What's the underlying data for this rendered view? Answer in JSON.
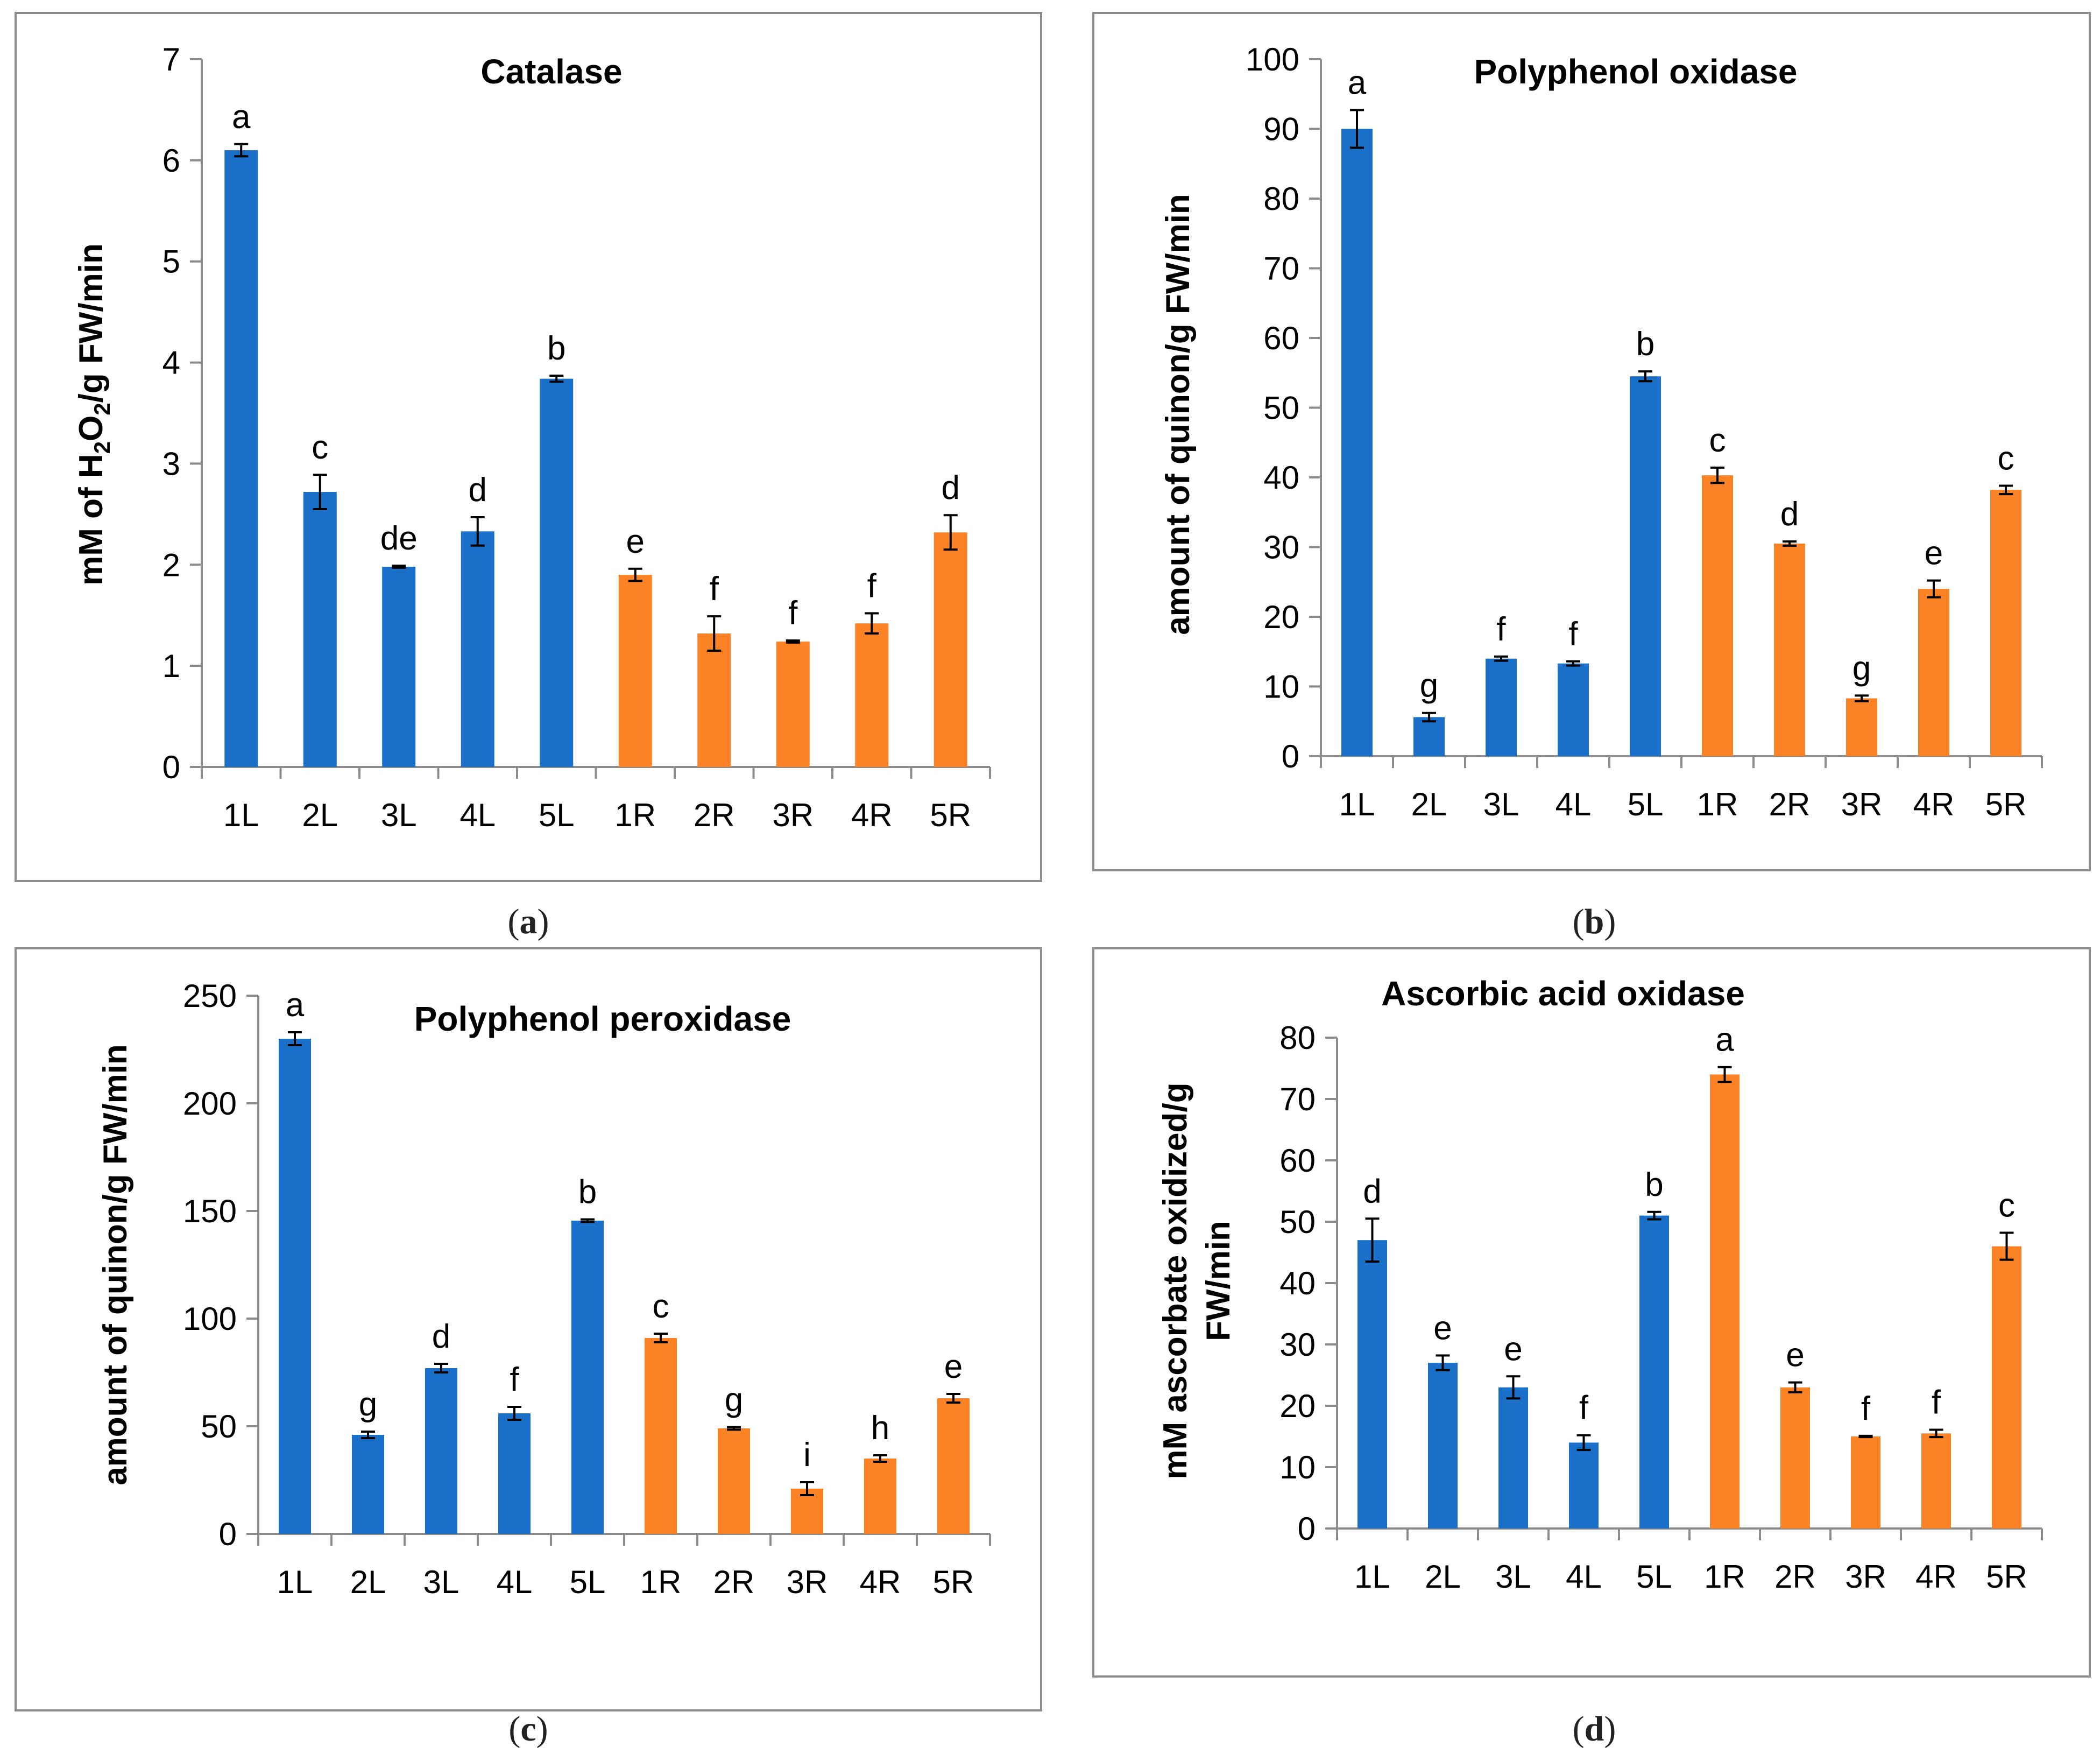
{
  "colors": {
    "left": "#1a70c8",
    "right": "#fb8225",
    "axis": "#8c8c8c",
    "text": "#000000"
  },
  "chart_data": [
    {
      "type": "bar",
      "panel_label": "a",
      "title": "Catalase",
      "ylabel_parts": [
        "mM of H",
        "2",
        "O",
        "2",
        "/g FW/min"
      ],
      "categories": [
        "1L",
        "2L",
        "3L",
        "4L",
        "5L",
        "1R",
        "2R",
        "3R",
        "4R",
        "5R"
      ],
      "values": [
        6.1,
        2.72,
        1.98,
        2.33,
        3.84,
        1.9,
        1.32,
        1.24,
        1.42,
        2.32
      ],
      "errors": [
        0.06,
        0.17,
        0.01,
        0.14,
        0.03,
        0.06,
        0.17,
        0.01,
        0.1,
        0.17
      ],
      "letters": [
        "a",
        "c",
        "de",
        "d",
        "b",
        "e",
        "f",
        "f",
        "f",
        "d"
      ],
      "group": [
        "L",
        "L",
        "L",
        "L",
        "L",
        "R",
        "R",
        "R",
        "R",
        "R"
      ],
      "ylim": [
        0,
        7
      ],
      "yticks": [
        "0",
        "1",
        "2",
        "3",
        "4",
        "5",
        "6",
        "7"
      ],
      "ytick_values": [
        0,
        1,
        2,
        3,
        4,
        5,
        6,
        7
      ]
    },
    {
      "type": "bar",
      "panel_label": "b",
      "title": "Polyphenol oxidase",
      "ylabel_parts": [
        "amount of quinon/g FW/min"
      ],
      "categories": [
        "1L",
        "2L",
        "3L",
        "4L",
        "5L",
        "1R",
        "2R",
        "3R",
        "4R",
        "5R"
      ],
      "values": [
        90,
        5.6,
        14,
        13.3,
        54.5,
        40.3,
        30.5,
        8.3,
        24,
        38.2
      ],
      "errors": [
        2.7,
        0.6,
        0.3,
        0.3,
        0.7,
        1.1,
        0.3,
        0.4,
        1.2,
        0.6
      ],
      "letters": [
        "a",
        "g",
        "f",
        "f",
        "b",
        "c",
        "d",
        "g",
        "e",
        "c"
      ],
      "group": [
        "L",
        "L",
        "L",
        "L",
        "L",
        "R",
        "R",
        "R",
        "R",
        "R"
      ],
      "ylim": [
        0,
        100
      ],
      "yticks": [
        "0",
        "10",
        "20",
        "30",
        "40",
        "50",
        "60",
        "70",
        "80",
        "90",
        "100"
      ],
      "ytick_values": [
        0,
        10,
        20,
        30,
        40,
        50,
        60,
        70,
        80,
        90,
        100
      ]
    },
    {
      "type": "bar",
      "panel_label": "c",
      "title": "Polyphenol peroxidase",
      "ylabel_parts": [
        "amount of quinon/g FW/min"
      ],
      "categories": [
        "1L",
        "2L",
        "3L",
        "4L",
        "5L",
        "1R",
        "2R",
        "3R",
        "4R",
        "5R"
      ],
      "values": [
        230,
        46,
        77,
        56,
        145.5,
        91,
        49,
        21,
        35,
        63
      ],
      "errors": [
        3,
        1.5,
        2,
        3,
        0.6,
        2,
        0.6,
        3,
        1.5,
        2
      ],
      "letters": [
        "a",
        "g",
        "d",
        "f",
        "b",
        "c",
        "g",
        "i",
        "h",
        "e"
      ],
      "group": [
        "L",
        "L",
        "L",
        "L",
        "L",
        "R",
        "R",
        "R",
        "R",
        "R"
      ],
      "ylim": [
        0,
        250
      ],
      "yticks": [
        "0",
        "50",
        "100",
        "150",
        "200",
        "250"
      ],
      "ytick_values": [
        0,
        50,
        100,
        150,
        200,
        250
      ]
    },
    {
      "type": "bar",
      "panel_label": "d",
      "title": "Ascorbic acid oxidase",
      "ylabel_lines": [
        "mM ascorbate oxidized/g",
        "FW/min"
      ],
      "categories": [
        "1L",
        "2L",
        "3L",
        "4L",
        "5L",
        "1R",
        "2R",
        "3R",
        "4R",
        "5R"
      ],
      "values": [
        47,
        27,
        23,
        14,
        51,
        74,
        23,
        15,
        15.5,
        46
      ],
      "errors": [
        3.5,
        1.2,
        1.8,
        1.2,
        0.6,
        1.2,
        0.8,
        0.1,
        0.6,
        2.2
      ],
      "letters": [
        "d",
        "e",
        "e",
        "f",
        "b",
        "a",
        "e",
        "f",
        "f",
        "c"
      ],
      "group": [
        "L",
        "L",
        "L",
        "L",
        "L",
        "R",
        "R",
        "R",
        "R",
        "R"
      ],
      "ylim": [
        0,
        80
      ],
      "yticks": [
        "0",
        "10",
        "20",
        "30",
        "40",
        "50",
        "60",
        "70",
        "80"
      ],
      "ytick_values": [
        0,
        10,
        20,
        30,
        40,
        50,
        60,
        70,
        80
      ]
    }
  ]
}
